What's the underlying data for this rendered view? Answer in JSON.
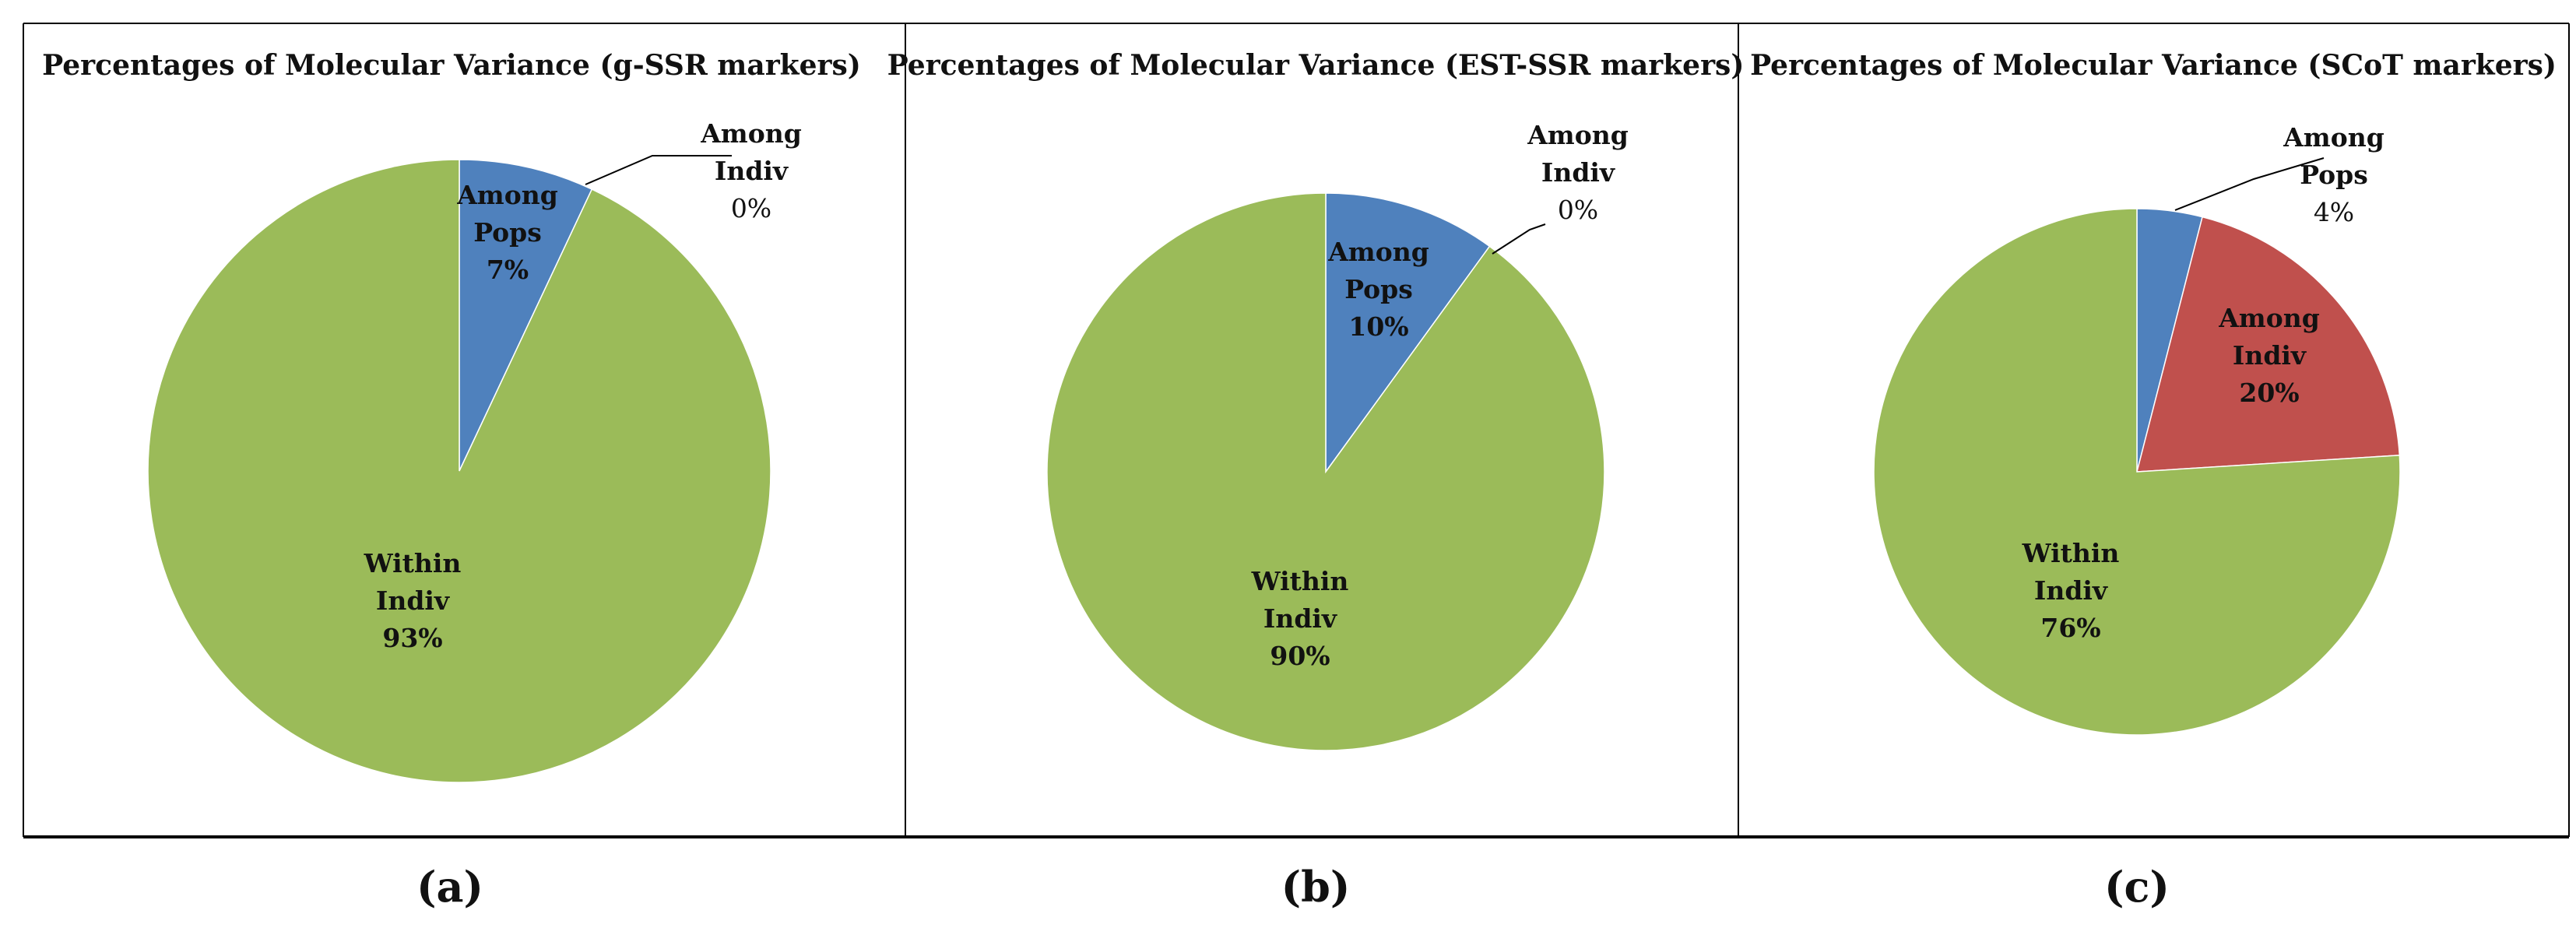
{
  "figure": {
    "captions": [
      "(a)",
      "(b)",
      "(c)"
    ]
  },
  "chart_data": [
    {
      "type": "pie",
      "title": "Percentages of Molecular Variance (g-SSR markers)",
      "slices": [
        {
          "name": "Among Pops",
          "value": 7,
          "label": "7%",
          "color": "#4F81BD"
        },
        {
          "name": "Among Indiv",
          "value": 0,
          "label": "0%",
          "color": "#C0504D"
        },
        {
          "name": "Within Indiv",
          "value": 93,
          "label": "93%",
          "color": "#9BBB59"
        }
      ]
    },
    {
      "type": "pie",
      "title": "Percentages of Molecular Variance (EST-SSR markers)",
      "slices": [
        {
          "name": "Among Pops",
          "value": 10,
          "label": "10%",
          "color": "#4F81BD"
        },
        {
          "name": "Among Indiv",
          "value": 0,
          "label": "0%",
          "color": "#C0504D"
        },
        {
          "name": "Within Indiv",
          "value": 90,
          "label": "90%",
          "color": "#9BBB59"
        }
      ]
    },
    {
      "type": "pie",
      "title": "Percentages of Molecular Variance (SCoT markers)",
      "slices": [
        {
          "name": "Among Pops",
          "value": 4,
          "label": "4%",
          "color": "#4F81BD"
        },
        {
          "name": "Among Indiv",
          "value": 20,
          "label": "20%",
          "color": "#C0504D"
        },
        {
          "name": "Within Indiv",
          "value": 76,
          "label": "76%",
          "color": "#9BBB59"
        }
      ]
    }
  ]
}
